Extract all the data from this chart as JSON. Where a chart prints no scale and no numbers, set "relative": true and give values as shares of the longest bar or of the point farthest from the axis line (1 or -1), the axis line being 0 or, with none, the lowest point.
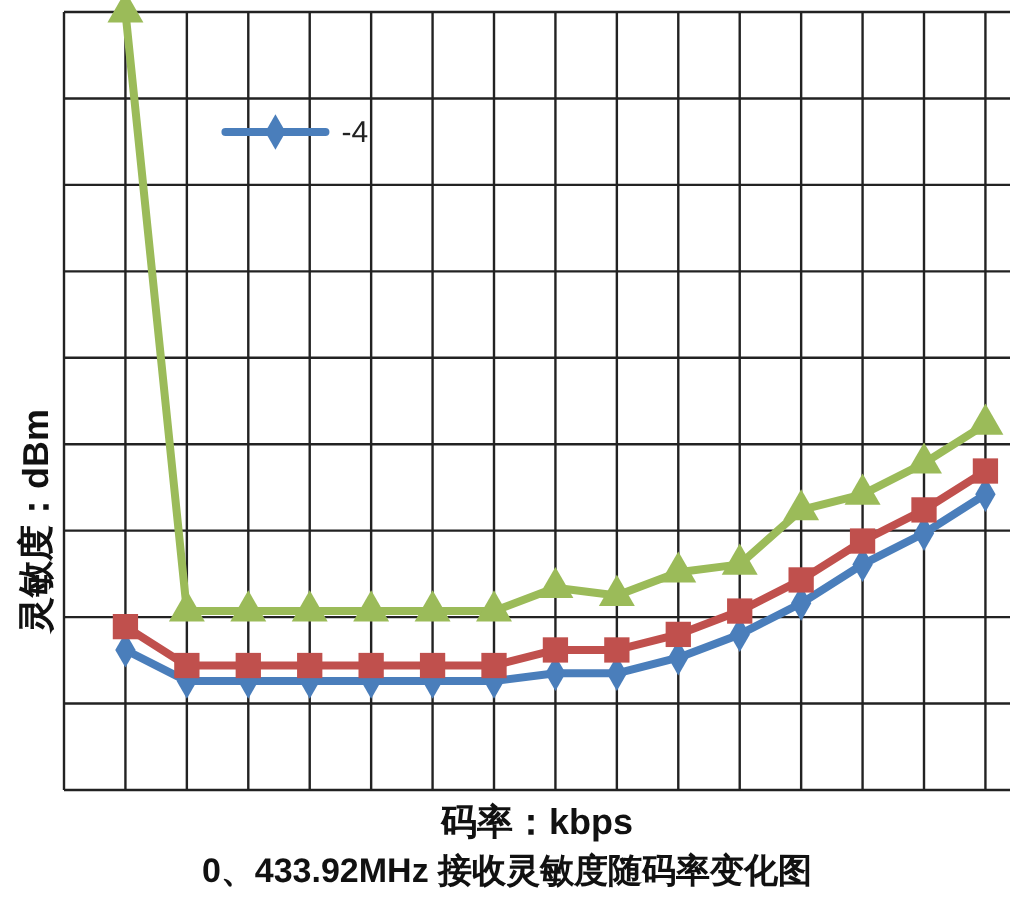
{
  "chart_data": {
    "type": "line",
    "relative": true,
    "xlabel": "码率：kbps",
    "ylabel": "灵敏度：dBm",
    "annotations": [
      "0、433.92MHz 接收灵敏度随码率变化图"
    ],
    "categories": [
      null,
      null,
      null,
      null,
      null,
      null,
      null,
      null,
      null,
      null,
      null,
      null,
      null,
      null,
      null
    ],
    "series": [
      {
        "name": "-4",
        "color": "#4a7ebb",
        "marker": "diamond",
        "values": [
          0.18,
          0.14,
          0.14,
          0.14,
          0.14,
          0.14,
          0.14,
          0.15,
          0.15,
          0.17,
          0.2,
          0.24,
          0.29,
          0.33,
          0.38
        ]
      },
      {
        "color": "#c0504d",
        "marker": "square",
        "values": [
          0.21,
          0.16,
          0.16,
          0.16,
          0.16,
          0.16,
          0.16,
          0.18,
          0.18,
          0.2,
          0.23,
          0.27,
          0.32,
          0.36,
          0.41
        ]
      },
      {
        "color": "#9bbb59",
        "marker": "triangle",
        "values": [
          1,
          0.23,
          0.23,
          0.23,
          0.23,
          0.23,
          0.23,
          0.26,
          0.25,
          0.28,
          0.29,
          0.36,
          0.38,
          0.42,
          0.47
        ]
      }
    ],
    "grid": true,
    "legend": "top left"
  }
}
